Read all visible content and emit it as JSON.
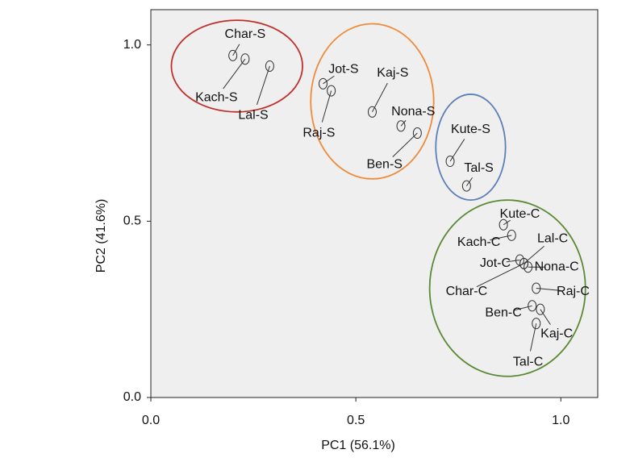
{
  "chart_data": {
    "type": "scatter",
    "xlabel": "PC1 (56.1%)",
    "ylabel": "PC2 (41.6%)",
    "xlim": [
      0,
      1.09
    ],
    "ylim": [
      0,
      1.1
    ],
    "xticks": [
      "0.0",
      "0.5",
      "1.0"
    ],
    "yticks": [
      "0.0",
      "0.5",
      "1.0"
    ],
    "background": "#efefef",
    "points": [
      {
        "label": "Char-S",
        "x": 0.2,
        "y": 0.97,
        "lx": 0.23,
        "ly": 1.03
      },
      {
        "label": "Kach-S",
        "x": 0.23,
        "y": 0.96,
        "lx": 0.16,
        "ly": 0.85
      },
      {
        "label": "Lal-S",
        "x": 0.29,
        "y": 0.94,
        "lx": 0.25,
        "ly": 0.8
      },
      {
        "label": "Jot-S",
        "x": 0.42,
        "y": 0.89,
        "lx": 0.47,
        "ly": 0.93
      },
      {
        "label": "Raj-S",
        "x": 0.44,
        "y": 0.87,
        "lx": 0.41,
        "ly": 0.75
      },
      {
        "label": "Kaj-S",
        "x": 0.54,
        "y": 0.81,
        "lx": 0.59,
        "ly": 0.92
      },
      {
        "label": "Nona-S",
        "x": 0.61,
        "y": 0.77,
        "lx": 0.64,
        "ly": 0.81
      },
      {
        "label": "Ben-S",
        "x": 0.65,
        "y": 0.75,
        "lx": 0.57,
        "ly": 0.66
      },
      {
        "label": "Kute-S",
        "x": 0.73,
        "y": 0.67,
        "lx": 0.78,
        "ly": 0.76
      },
      {
        "label": "Tal-S",
        "x": 0.77,
        "y": 0.6,
        "lx": 0.8,
        "ly": 0.65
      },
      {
        "label": "Kute-C",
        "x": 0.86,
        "y": 0.49,
        "lx": 0.9,
        "ly": 0.52
      },
      {
        "label": "Kach-C",
        "x": 0.88,
        "y": 0.46,
        "lx": 0.8,
        "ly": 0.44
      },
      {
        "label": "Lal-C",
        "x": 0.91,
        "y": 0.38,
        "lx": 0.98,
        "ly": 0.45
      },
      {
        "label": "Jot-C",
        "x": 0.9,
        "y": 0.39,
        "lx": 0.84,
        "ly": 0.38
      },
      {
        "label": "Nona-C",
        "x": 0.92,
        "y": 0.37,
        "lx": 0.99,
        "ly": 0.37
      },
      {
        "label": "Char-C",
        "x": 0.91,
        "y": 0.38,
        "lx": 0.77,
        "ly": 0.3
      },
      {
        "label": "Raj-C",
        "x": 0.94,
        "y": 0.31,
        "lx": 1.03,
        "ly": 0.3
      },
      {
        "label": "Ben-C",
        "x": 0.93,
        "y": 0.26,
        "lx": 0.86,
        "ly": 0.24
      },
      {
        "label": "Kaj-C",
        "x": 0.95,
        "y": 0.25,
        "lx": 0.99,
        "ly": 0.18
      },
      {
        "label": "Tal-C",
        "x": 0.94,
        "y": 0.21,
        "lx": 0.92,
        "ly": 0.1
      }
    ],
    "groups": [
      {
        "color": "#c0302b",
        "cx": 0.21,
        "cy": 0.94,
        "rx": 0.16,
        "ry": 0.13
      },
      {
        "color": "#ef8a3a",
        "cx": 0.54,
        "cy": 0.84,
        "rx": 0.15,
        "ry": 0.22
      },
      {
        "color": "#5b7fb8",
        "cx": 0.78,
        "cy": 0.71,
        "rx": 0.085,
        "ry": 0.15
      },
      {
        "color": "#5a8a34",
        "cx": 0.87,
        "cy": 0.31,
        "rx": 0.19,
        "ry": 0.25
      }
    ]
  }
}
